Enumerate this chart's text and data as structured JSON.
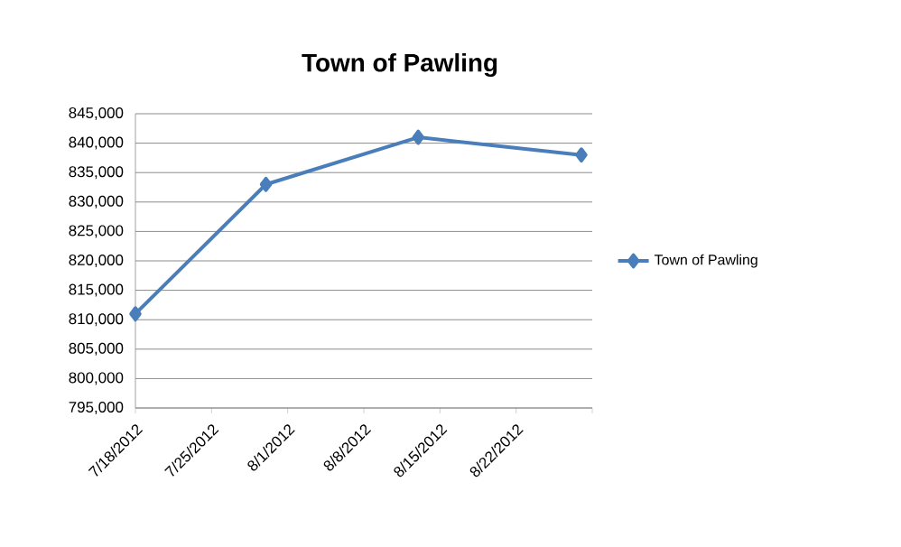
{
  "chart_data": {
    "type": "line",
    "title": "Town of Pawling",
    "x": [
      "2012-07-18",
      "2012-07-30",
      "2012-08-13",
      "2012-08-28"
    ],
    "series": [
      {
        "name": "Town of Pawling",
        "color": "#4a7ebb",
        "values": [
          811000,
          833000,
          841000,
          838000
        ]
      }
    ],
    "xlim": [
      "2012-07-18",
      "2012-08-29"
    ],
    "xticks": [
      {
        "value": "2012-07-18",
        "label": "7/18/2012"
      },
      {
        "value": "2012-07-25",
        "label": "7/25/2012"
      },
      {
        "value": "2012-08-01",
        "label": "8/1/2012"
      },
      {
        "value": "2012-08-08",
        "label": "8/8/2012"
      },
      {
        "value": "2012-08-15",
        "label": "8/15/2012"
      },
      {
        "value": "2012-08-22",
        "label": "8/22/2012"
      },
      {
        "value": "2012-08-29",
        "label": null
      }
    ],
    "ylim": [
      795000,
      845000
    ],
    "yticks": [
      {
        "value": 795000,
        "label": "795,000"
      },
      {
        "value": 800000,
        "label": "800,000"
      },
      {
        "value": 805000,
        "label": "805,000"
      },
      {
        "value": 810000,
        "label": "810,000"
      },
      {
        "value": 815000,
        "label": "815,000"
      },
      {
        "value": 820000,
        "label": "820,000"
      },
      {
        "value": 825000,
        "label": "825,000"
      },
      {
        "value": 830000,
        "label": "830,000"
      },
      {
        "value": 835000,
        "label": "835,000"
      },
      {
        "value": 840000,
        "label": "840,000"
      },
      {
        "value": 845000,
        "label": "845,000"
      }
    ],
    "grid": "y",
    "legend": "right",
    "marker": "diamond",
    "line_style": "solid"
  }
}
